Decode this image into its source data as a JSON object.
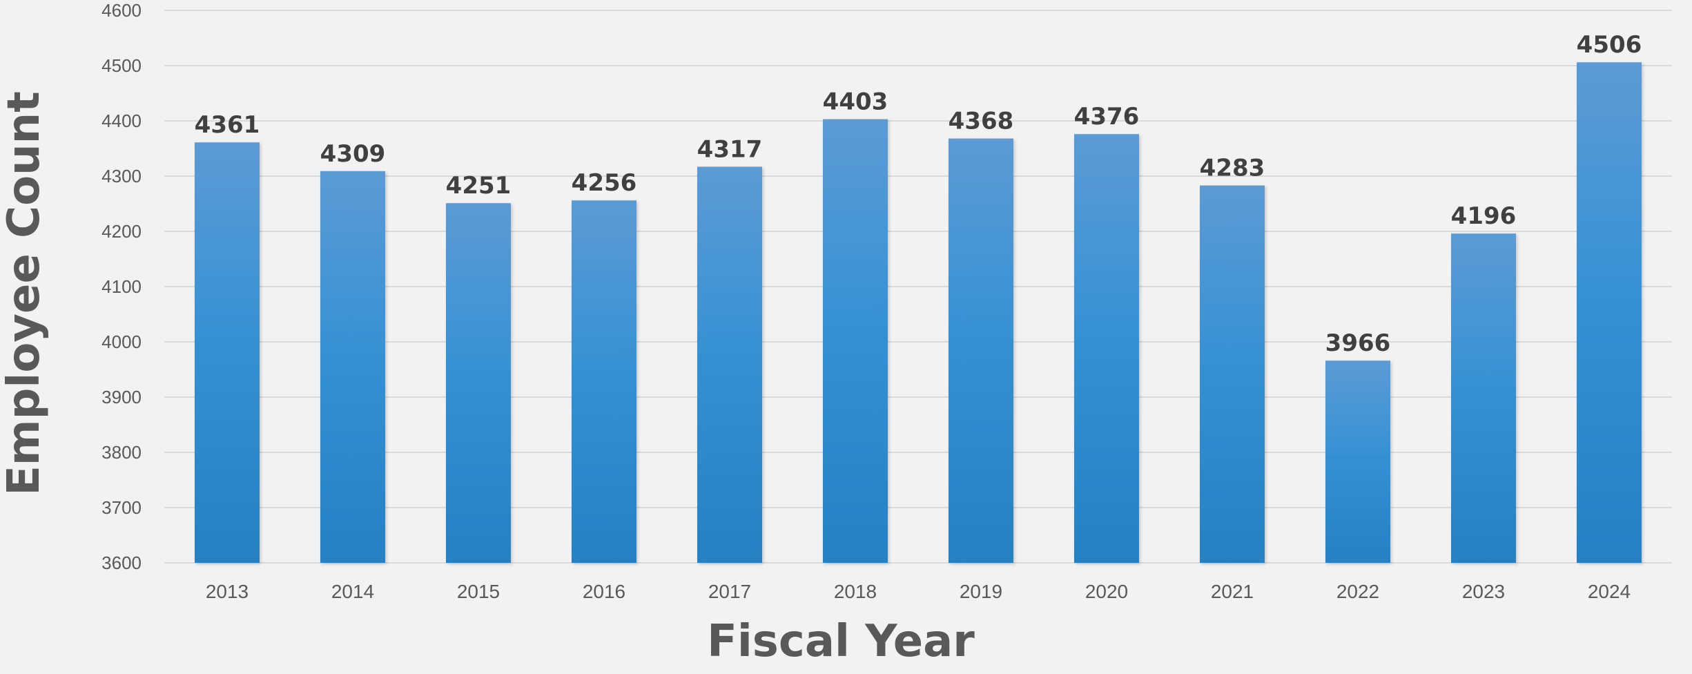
{
  "chart_data": {
    "type": "bar",
    "title": "",
    "xlabel": "Fiscal Year",
    "ylabel": "Employee Count",
    "categories": [
      "2013",
      "2014",
      "2015",
      "2016",
      "2017",
      "2018",
      "2019",
      "2020",
      "2021",
      "2022",
      "2023",
      "2024"
    ],
    "values": [
      4361,
      4309,
      4251,
      4256,
      4317,
      4403,
      4368,
      4376,
      4283,
      3966,
      4196,
      4506
    ],
    "ylim": [
      3600,
      4600
    ],
    "yticks": [
      3600,
      3700,
      3800,
      3900,
      4000,
      4100,
      4200,
      4300,
      4400,
      4500,
      4600
    ],
    "grid": true,
    "legend": "none",
    "data_labels": true,
    "colors": {
      "bar_top": "#5b9bd5",
      "bar_mid": "#3490d3",
      "bar_bottom": "#2581c4",
      "grid": "#d9d9d9",
      "background": "#f2f2f2",
      "tick_text": "#595959",
      "data_label_text": "#404040"
    }
  }
}
